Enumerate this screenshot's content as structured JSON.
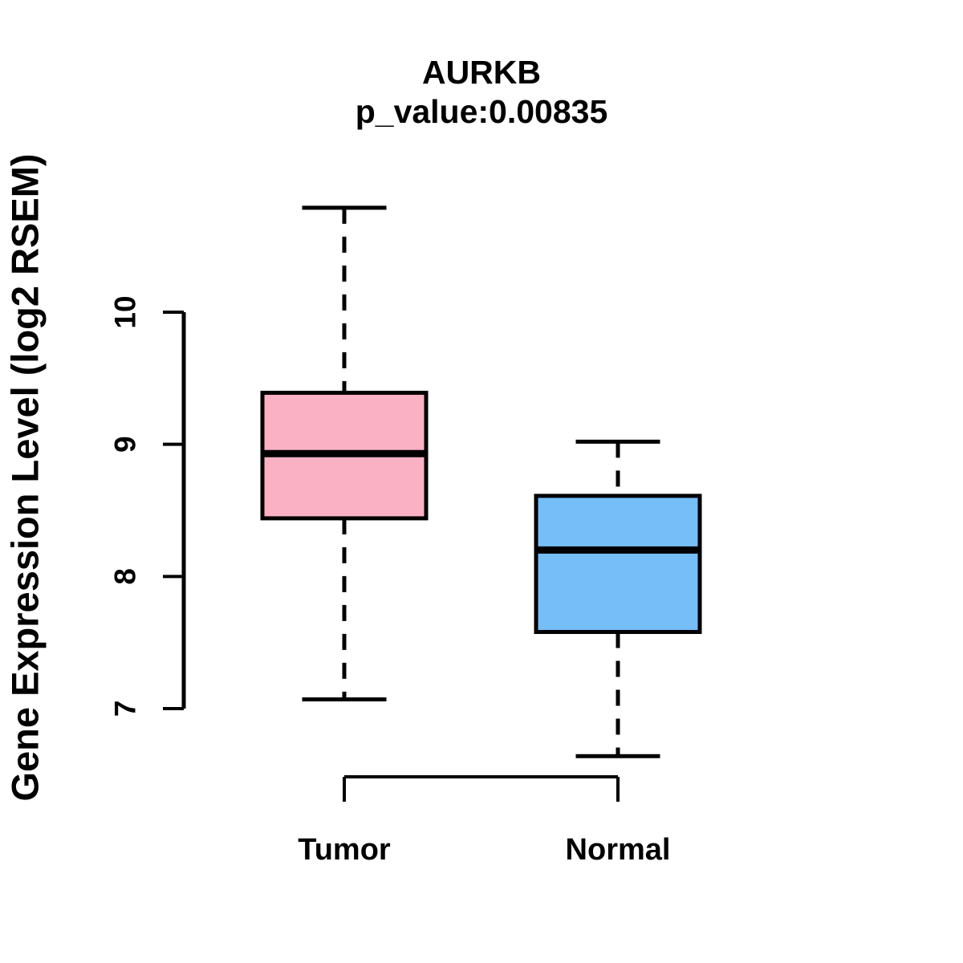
{
  "title": {
    "gene": "AURKB",
    "pvalue": "p_value:0.00835"
  },
  "chart_data": {
    "type": "boxplot",
    "title": "AURKB",
    "subtitle": "p_value:0.00835",
    "ylabel": "Gene Expression Level (log2 RSEM)",
    "xlabel": "",
    "categories": [
      "Tumor",
      "Normal"
    ],
    "yticks": [
      7,
      8,
      9,
      10
    ],
    "ylim": [
      6.4,
      10.9
    ],
    "grid": false,
    "legend": "none",
    "background": "#FFFFFF",
    "line_color": "#000000",
    "series": [
      {
        "name": "Tumor",
        "box_color": "#FBB1C4",
        "whisker_low": 7.07,
        "q1": 8.44,
        "median": 8.93,
        "q3": 9.39,
        "whisker_high": 10.79
      },
      {
        "name": "Normal",
        "box_color": "#75BEF8",
        "whisker_low": 6.64,
        "q1": 7.58,
        "median": 8.2,
        "q3": 8.61,
        "whisker_high": 9.02
      }
    ]
  }
}
